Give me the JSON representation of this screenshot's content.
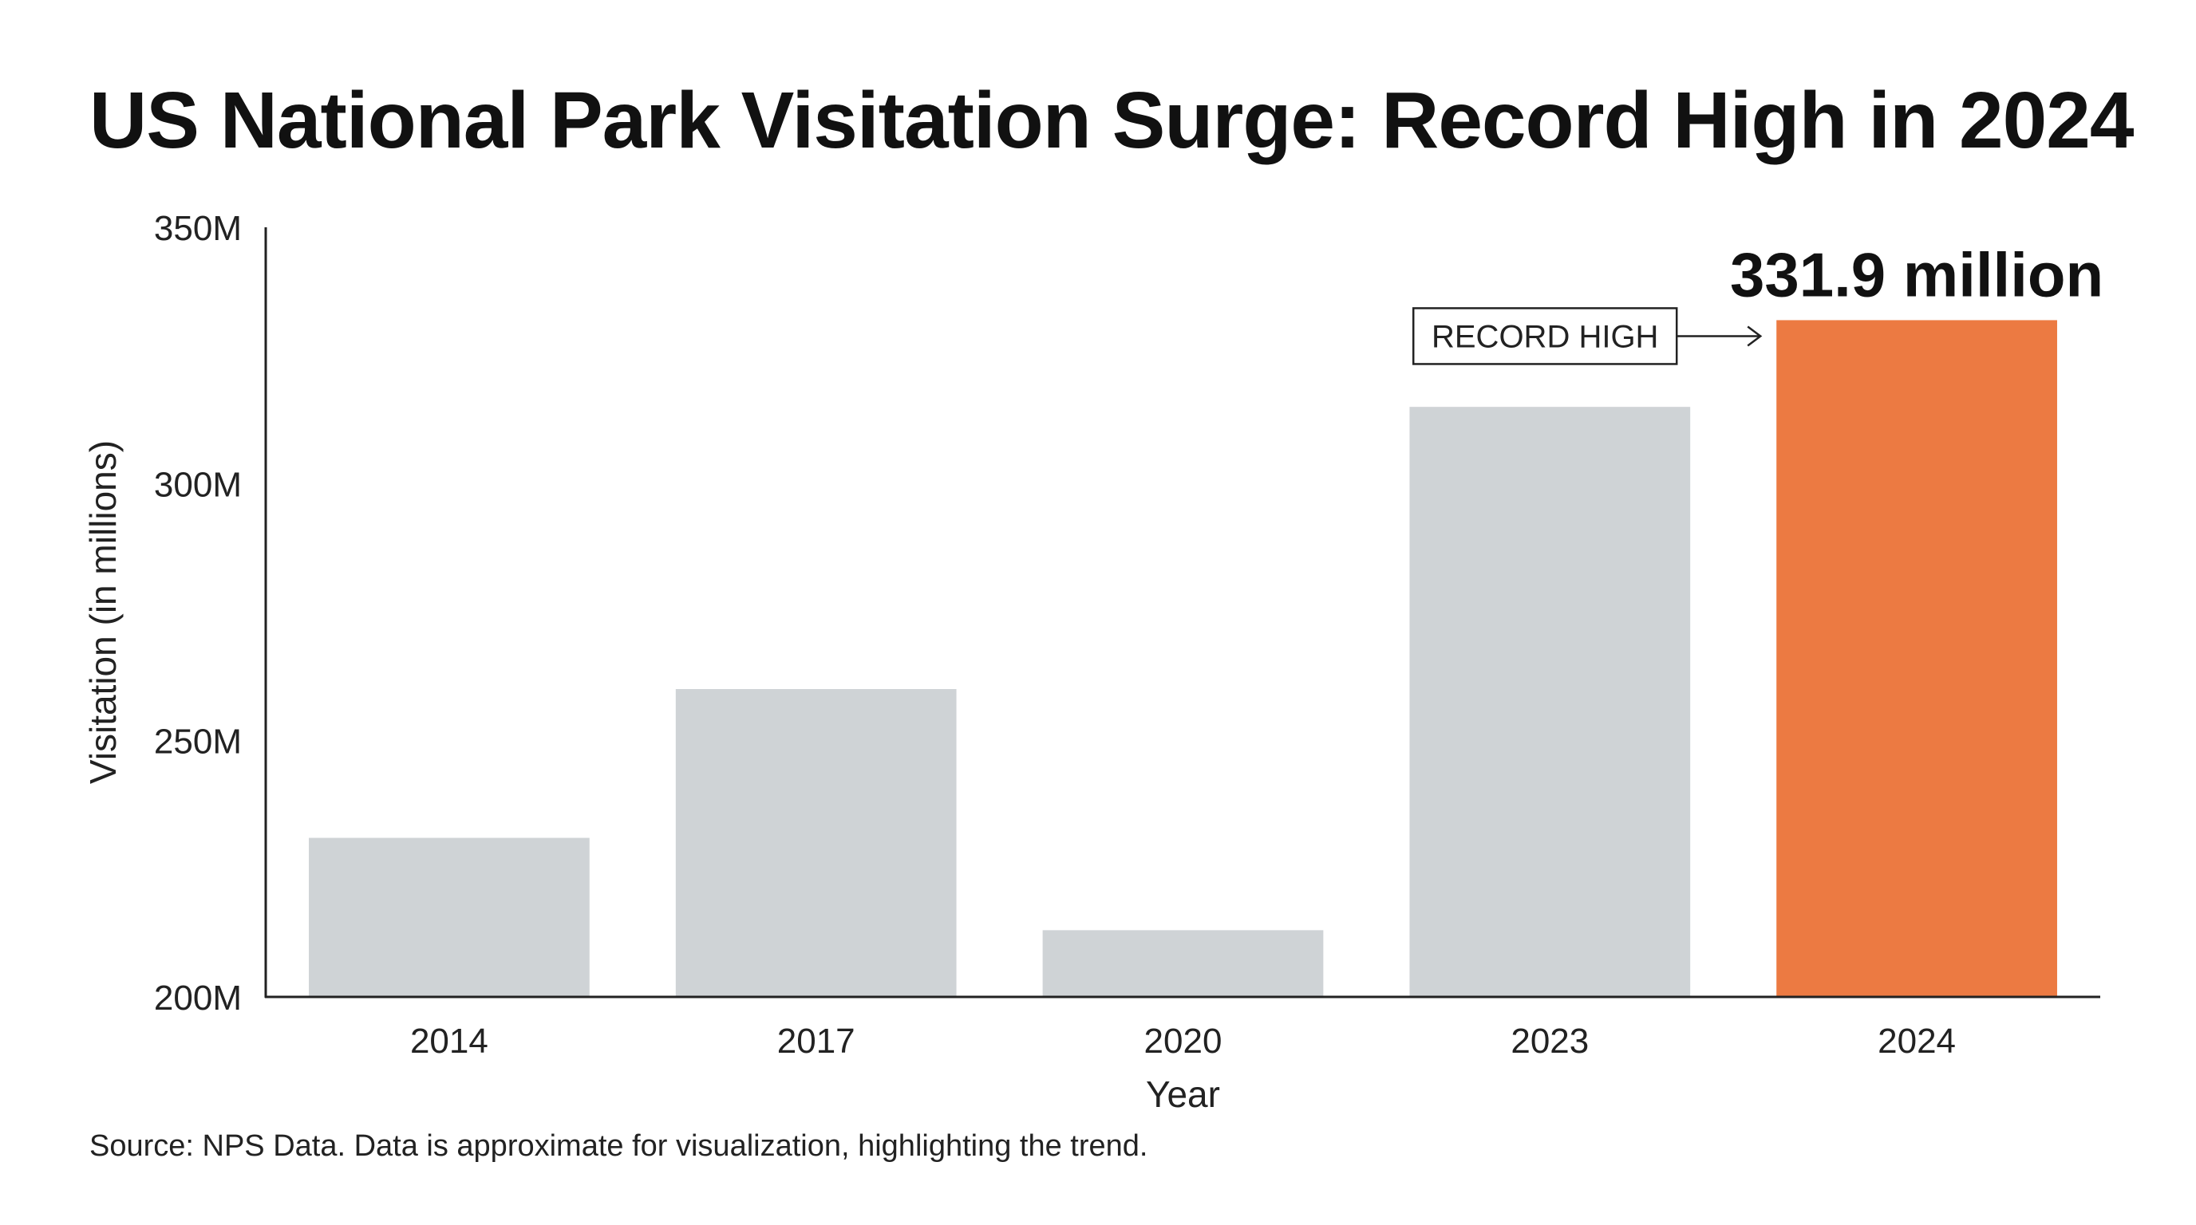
{
  "chart_data": {
    "type": "bar",
    "title": "US National Park Visitation Surge: Record High in 2024",
    "xlabel": "Year",
    "ylabel": "Visitation (in millions)",
    "categories": [
      "2014",
      "2017",
      "2020",
      "2023",
      "2024"
    ],
    "values": [
      231,
      260,
      213,
      315,
      331.9
    ],
    "ylim": [
      200,
      350
    ],
    "yticks": [
      200,
      250,
      300,
      350
    ],
    "ytick_labels": [
      "200M",
      "250M",
      "300M",
      "350M"
    ],
    "grid": false,
    "legend": "none",
    "colors": {
      "bar_default": "#cfd3d6",
      "bar_highlight": "#ec7a42",
      "axis": "#222222"
    },
    "highlight_index": 4,
    "annotations": {
      "record_label": "RECORD HIGH",
      "value_label": "331.9 million"
    },
    "source": "Source: NPS Data. Data is approximate for visualization, highlighting the trend."
  }
}
